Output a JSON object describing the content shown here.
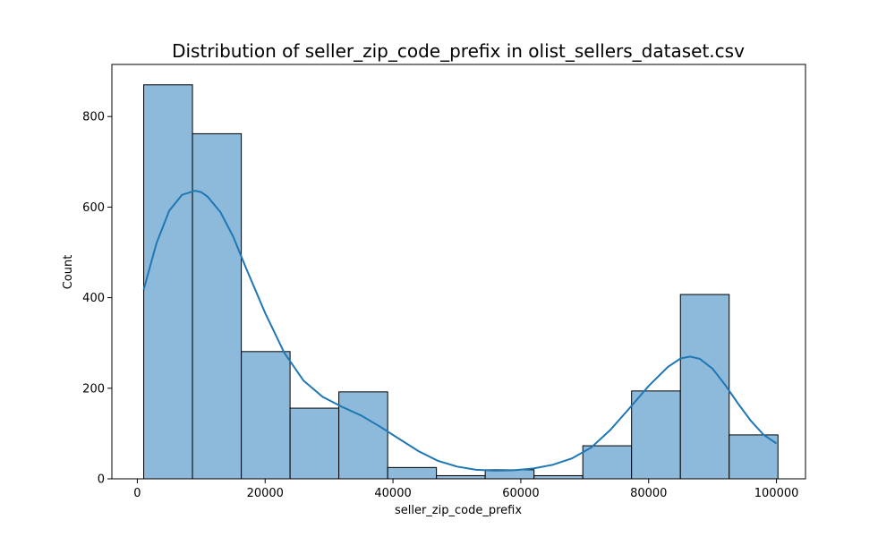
{
  "chart_data": {
    "type": "histogram",
    "title": "Distribution of seller_zip_code_prefix in olist_sellers_dataset.csv",
    "xlabel": "seller_zip_code_prefix",
    "ylabel": "Count",
    "xlim": [
      -3980,
      104540
    ],
    "ylim": [
      0,
      915
    ],
    "xticks": [
      0,
      20000,
      40000,
      60000,
      80000,
      100000
    ],
    "yticks": [
      0,
      200,
      400,
      600,
      800
    ],
    "bin_edges": [
      1000,
      8630,
      16270,
      23900,
      31530,
      39170,
      46800,
      54430,
      62070,
      69700,
      77330,
      84970,
      92600,
      100230
    ],
    "counts": [
      870,
      762,
      281,
      156,
      192,
      25,
      7,
      20,
      7,
      73,
      194,
      407,
      97
    ],
    "kde": {
      "x": [
        1000,
        3000,
        5000,
        7000,
        9000,
        10000,
        11000,
        13000,
        15000,
        17000,
        20000,
        23000,
        26000,
        29000,
        32000,
        35000,
        38000,
        41000,
        44000,
        47000,
        50000,
        53000,
        56000,
        59000,
        62000,
        65000,
        68000,
        71000,
        74000,
        77000,
        80000,
        83000,
        85000,
        86500,
        88000,
        90000,
        92000,
        94000,
        96000,
        98000,
        100000
      ],
      "y": [
        418,
        520,
        592,
        627,
        636,
        633,
        623,
        589,
        535,
        466,
        366,
        278,
        217,
        181,
        159,
        140,
        115,
        88,
        61,
        40,
        27,
        20,
        18,
        19,
        23,
        31,
        45,
        69,
        108,
        156,
        205,
        247,
        266,
        270,
        265,
        243,
        207,
        166,
        128,
        97,
        78
      ]
    },
    "bar_color": "#8db9db",
    "bar_edge_color": "#000000",
    "line_color": "#1f77b4",
    "grid": false
  }
}
